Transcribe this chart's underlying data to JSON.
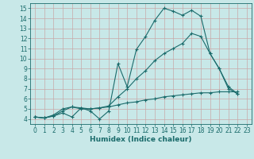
{
  "title": "",
  "xlabel": "Humidex (Indice chaleur)",
  "bg_color": "#c8e8e8",
  "grid_color": "#c8a8a8",
  "line_color": "#1a6b6b",
  "xlim": [
    -0.5,
    23.5
  ],
  "ylim": [
    3.5,
    15.5
  ],
  "xticks": [
    0,
    1,
    2,
    3,
    4,
    5,
    6,
    7,
    8,
    9,
    10,
    11,
    12,
    13,
    14,
    15,
    16,
    17,
    18,
    19,
    20,
    21,
    22,
    23
  ],
  "yticks": [
    4,
    5,
    6,
    7,
    8,
    9,
    10,
    11,
    12,
    13,
    14,
    15
  ],
  "line1_x": [
    0,
    1,
    2,
    3,
    4,
    5,
    6,
    7,
    8,
    9,
    10,
    11,
    12,
    13,
    14,
    15,
    16,
    17,
    18,
    19,
    20,
    21,
    22
  ],
  "line1_y": [
    4.2,
    4.1,
    4.3,
    4.6,
    4.2,
    5.1,
    4.8,
    4.0,
    4.8,
    9.5,
    7.2,
    10.9,
    12.2,
    13.8,
    15.0,
    14.7,
    14.3,
    14.8,
    14.2,
    10.5,
    9.0,
    7.0,
    6.5
  ],
  "line2_x": [
    0,
    1,
    2,
    3,
    4,
    5,
    6,
    7,
    8,
    9,
    10,
    11,
    12,
    13,
    14,
    15,
    16,
    17,
    18,
    19,
    20,
    21,
    22
  ],
  "line2_y": [
    4.2,
    4.1,
    4.3,
    4.8,
    5.2,
    5.1,
    5.0,
    5.1,
    5.3,
    6.2,
    7.0,
    8.0,
    8.8,
    9.8,
    10.5,
    11.0,
    11.5,
    12.5,
    12.2,
    10.5,
    9.0,
    7.2,
    6.5
  ],
  "line3_x": [
    0,
    1,
    2,
    3,
    4,
    5,
    6,
    7,
    8,
    9,
    10,
    11,
    12,
    13,
    14,
    15,
    16,
    17,
    18,
    19,
    20,
    21,
    22
  ],
  "line3_y": [
    4.2,
    4.1,
    4.4,
    5.0,
    5.2,
    5.0,
    5.0,
    5.1,
    5.2,
    5.4,
    5.6,
    5.7,
    5.9,
    6.0,
    6.2,
    6.3,
    6.4,
    6.5,
    6.6,
    6.6,
    6.7,
    6.7,
    6.7
  ],
  "tick_fontsize": 5.5,
  "xlabel_fontsize": 6.5
}
